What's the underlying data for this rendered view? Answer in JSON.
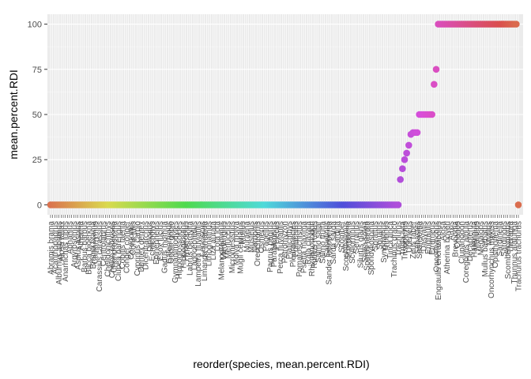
{
  "chart_data": {
    "type": "scatter",
    "xlabel": "reorder(species, mean.percent.RDI)",
    "ylabel": "mean.percent.RDI",
    "ylim": [
      0,
      100
    ],
    "yticks": [
      0,
      25,
      50,
      75,
      100
    ],
    "grid": true,
    "legend": "none",
    "panel_color": "#EBEBEB",
    "colors": {
      "start": "#F8766D",
      "palette": "hue"
    },
    "x_tick_labels_visible": [
      "Abramis brama",
      "Acanthopagrus",
      "Alburnus alburnus",
      "Alosa fallax",
      "Anarhichas lupus",
      "Aphanius",
      "Argyrosomus",
      "Aspius aspius",
      "Atherina",
      "Barbus barbus",
      "Blicca bjoerkna",
      "Brama brama",
      "Callionymus",
      "Carassius carassius",
      "Centrolabrus",
      "Chelidonichthys",
      "Chelon labrosus",
      "Chondrostoma",
      "Clupea harengus",
      "Cobitis taenia",
      "Conger conger",
      "Coregonus",
      "Coris julis",
      "Cyprinus carpio",
      "Dentex dentex",
      "Dicentrarchus",
      "Diplodus",
      "Echiichthys",
      "Epinephelus",
      "Esox lucius",
      "Gadus morhua",
      "Galeorhinus",
      "Gobio gobio",
      "Gymnammodytes",
      "Hippoglossoides",
      "Hippoglossus",
      "Hyperoplus",
      "Labrus bergylta",
      "Lagocephalus",
      "Lampetra fluviatilis",
      "Leuciscus",
      "Limanda limanda",
      "Lithognathus",
      "Liza aurata",
      "Lota lota",
      "Melanogrammus",
      "Merlangius",
      "Merluccius",
      "Micromesistius",
      "Molva molva",
      "Mugil cephalus",
      "Mullus",
      "Muraena",
      "Mustelus",
      "Nerophis",
      "Oreochromis",
      "Osmerus",
      "Pagellus",
      "Pagrus pagrus",
      "Parablennius",
      "Pelecus",
      "Perca fluviatilis",
      "Petromyzon",
      "Platichthys",
      "Pleuronectes",
      "Pollachius",
      "Pomatoschistus",
      "Psetta maxima",
      "Raja clavata",
      "Rhizoprionodon",
      "Rutilus rutilus",
      "Salmo salar",
      "Salmo trutta",
      "Salvelinus",
      "Sander lucioperca",
      "Sarda sarda",
      "Sardina",
      "Scomber",
      "Scophthalmus",
      "Scorpaena",
      "Scyliorhinus",
      "Serranus",
      "Silurus glanis",
      "Solea solea",
      "Sparus aurata",
      "Spondyliosoma",
      "Sprattus",
      "Squalus",
      "Syngnathus",
      "Thunnus",
      "Tinca tinca",
      "Trachinus draco",
      "Trachurus",
      "Trigla lyra",
      "Trisopterus",
      "Upeneus",
      "Zeus faber",
      "Sebastes",
      "Sparisoma",
      "Dasyatis",
      "Engraulis",
      "Etrumeus",
      "Oncorhynchus",
      "Engraulis encrasicolus",
      "Alosa",
      "Atherina boyeri",
      "Auxis",
      "Brevoortia",
      "Chanos",
      "Clupanodon",
      "Coregonus albula",
      "Decapterus",
      "Harengula",
      "Mallotus",
      "Megalops",
      "Mullus barbatus",
      "Mytilus",
      "Oncorhynchus mykiss",
      "Opisthonema",
      "Sardinella",
      "Sardinops",
      "Scomberomorus",
      "Theragra",
      "Thunnus alalunga",
      "Trachurus trachurus"
    ],
    "groups": [
      {
        "count": 166,
        "value": 0
      },
      {
        "count": 1,
        "value": 14
      },
      {
        "count": 1,
        "value": 20
      },
      {
        "count": 1,
        "value": 25
      },
      {
        "count": 1,
        "value": 28.6
      },
      {
        "count": 1,
        "value": 33
      },
      {
        "count": 1,
        "value": 39
      },
      {
        "count": 3,
        "value": 40
      },
      {
        "count": 7,
        "value": 50
      },
      {
        "count": 1,
        "value": 66.7
      },
      {
        "count": 1,
        "value": 75
      },
      {
        "count": 38,
        "value": 100
      },
      {
        "count": 1,
        "value": 0
      }
    ]
  }
}
